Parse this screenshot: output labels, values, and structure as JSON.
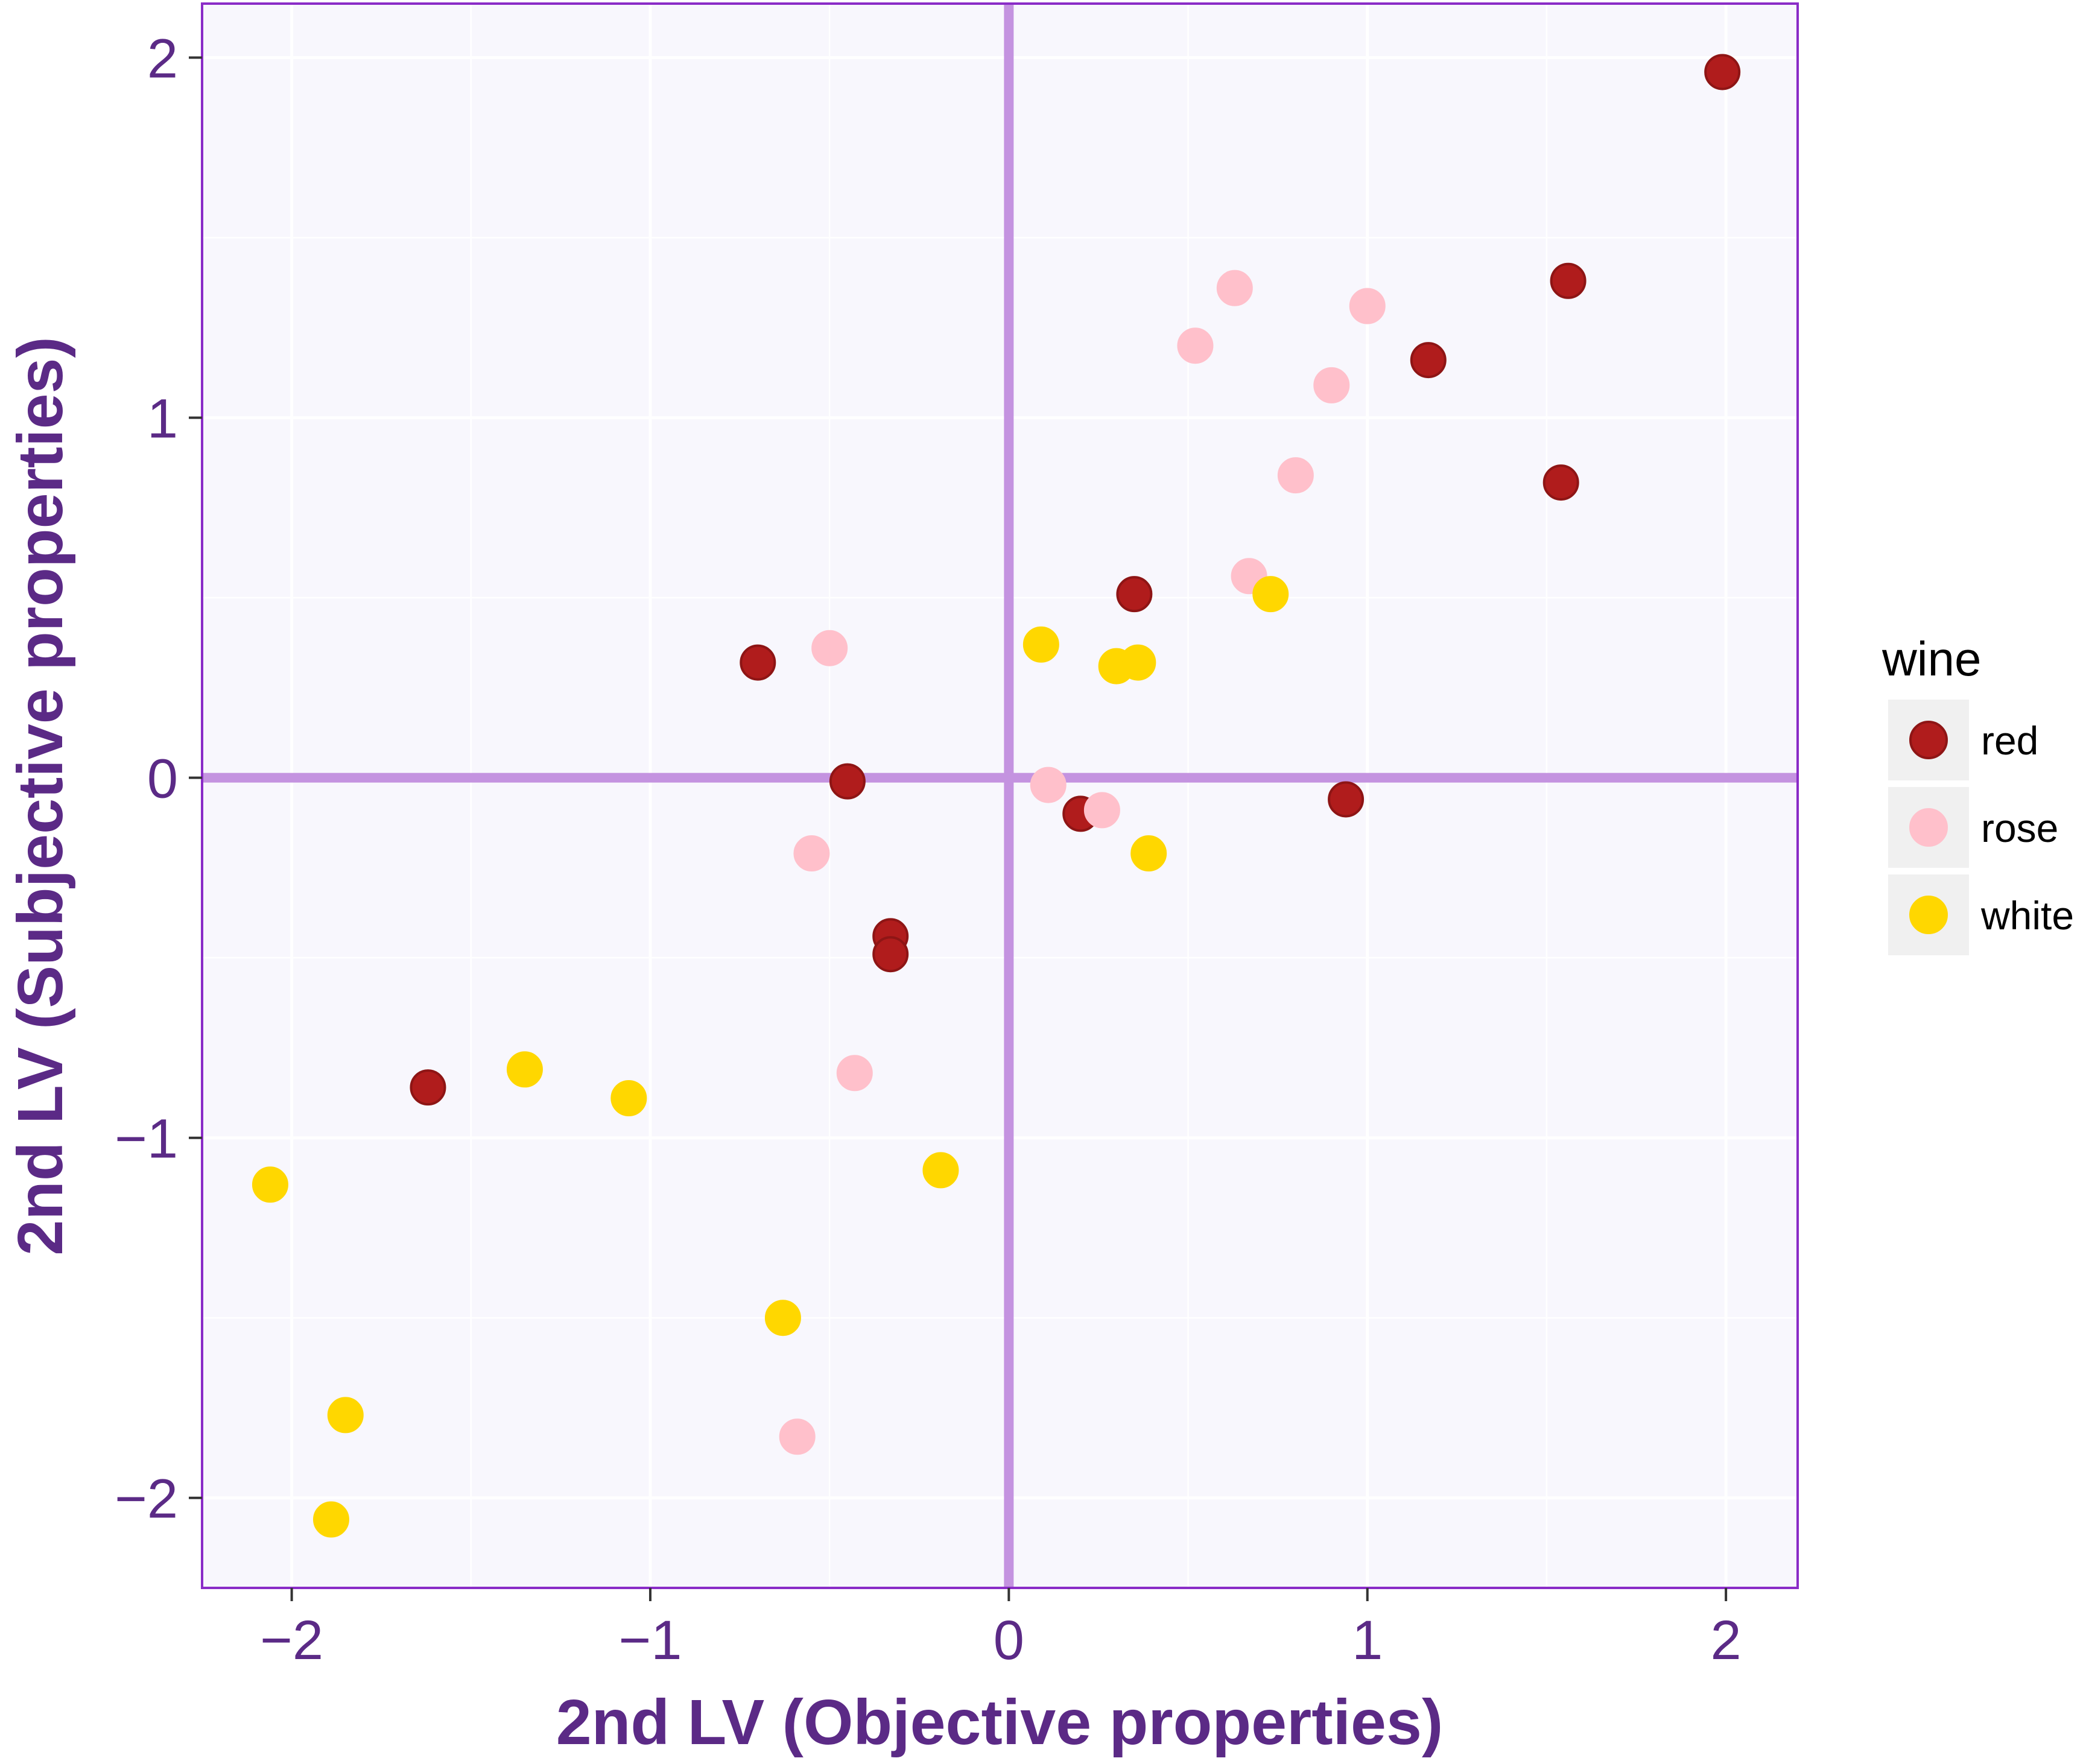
{
  "chart_data": {
    "type": "scatter",
    "xlabel": "2nd LV (Objective properties)",
    "ylabel": "2nd LV (Subjective properties)",
    "xlim": [
      -2.25,
      2.2
    ],
    "ylim": [
      -2.25,
      2.15
    ],
    "x_ticks": [
      -2,
      -1,
      0,
      1,
      2
    ],
    "y_ticks": [
      -2,
      -1,
      0,
      1,
      2
    ],
    "x_tick_labels": [
      "−2",
      "−1",
      "0",
      "1",
      "2"
    ],
    "y_tick_labels": [
      "−2",
      "−1",
      "0",
      "1",
      "2"
    ],
    "grid": true,
    "reference_lines": {
      "x": 0,
      "y": 0,
      "color": "#c493e0"
    },
    "panel_background": "#f8f7fd",
    "panel_border": "#8a2cc7",
    "legend": {
      "title": "wine",
      "position": "right"
    },
    "series": [
      {
        "name": "red",
        "color": "#b01c1c",
        "points": [
          [
            1.99,
            1.96
          ],
          [
            1.56,
            1.38
          ],
          [
            1.17,
            1.16
          ],
          [
            1.54,
            0.82
          ],
          [
            0.35,
            0.51
          ],
          [
            -0.7,
            0.32
          ],
          [
            -0.45,
            -0.01
          ],
          [
            0.2,
            -0.1
          ],
          [
            0.94,
            -0.06
          ],
          [
            -0.33,
            -0.44
          ],
          [
            -0.33,
            -0.49
          ],
          [
            -1.62,
            -0.86
          ]
        ]
      },
      {
        "name": "rose",
        "color": "#ffc0cb",
        "points": [
          [
            0.63,
            1.36
          ],
          [
            1.0,
            1.31
          ],
          [
            0.52,
            1.2
          ],
          [
            0.9,
            1.09
          ],
          [
            0.8,
            0.84
          ],
          [
            0.67,
            0.56
          ],
          [
            -0.5,
            0.36
          ],
          [
            0.11,
            -0.02
          ],
          [
            0.26,
            -0.09
          ],
          [
            -0.55,
            -0.21
          ],
          [
            -0.43,
            -0.82
          ],
          [
            -0.59,
            -1.83
          ]
        ]
      },
      {
        "name": "white",
        "color": "#ffd700",
        "points": [
          [
            0.73,
            0.51
          ],
          [
            0.09,
            0.37
          ],
          [
            0.3,
            0.31
          ],
          [
            0.36,
            0.32
          ],
          [
            0.39,
            -0.21
          ],
          [
            -1.35,
            -0.81
          ],
          [
            -1.06,
            -0.89
          ],
          [
            -2.06,
            -1.13
          ],
          [
            -0.19,
            -1.09
          ],
          [
            -0.63,
            -1.5
          ],
          [
            -1.85,
            -1.77
          ],
          [
            -1.89,
            -2.06
          ]
        ]
      }
    ]
  }
}
